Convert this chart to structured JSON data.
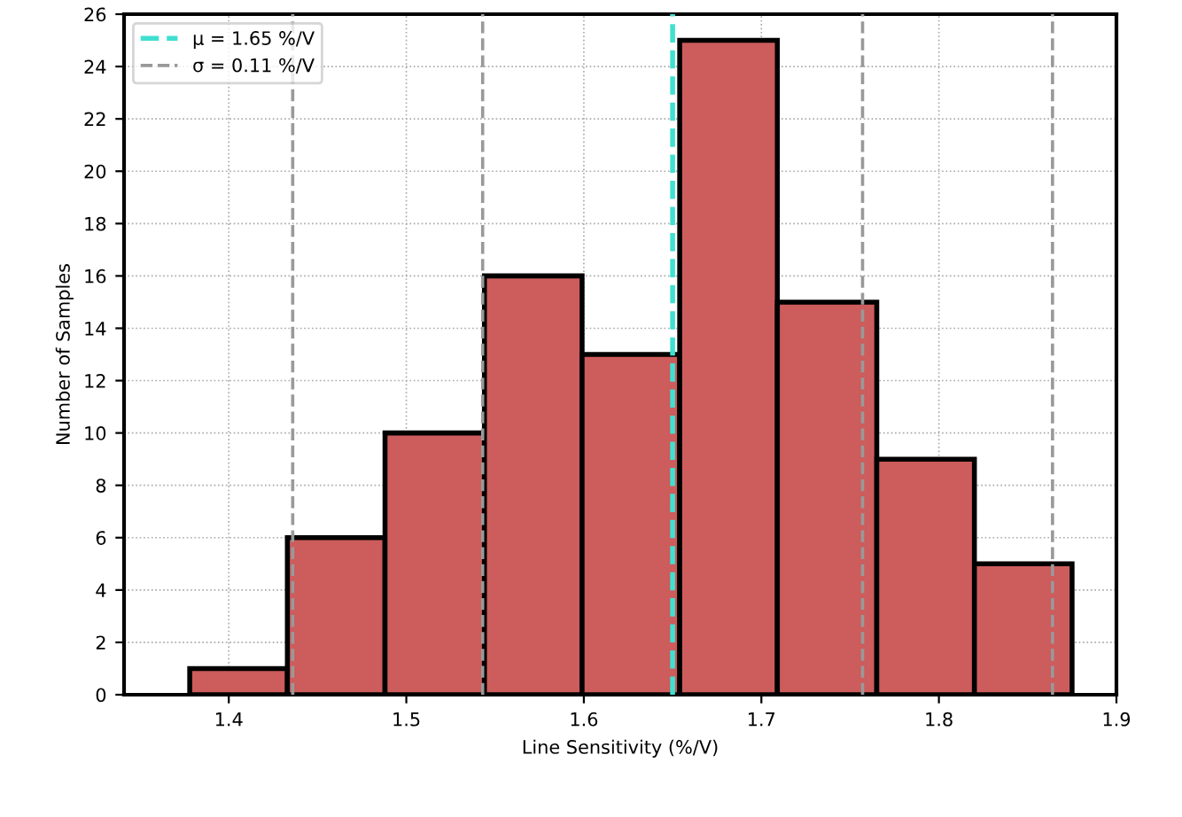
{
  "chart_data": {
    "type": "histogram",
    "xlabel": "Line Sensitivity (%/V)",
    "ylabel": "Number of Samples",
    "bins": [
      1.378,
      1.433,
      1.488,
      1.544,
      1.599,
      1.654,
      1.709,
      1.765,
      1.82,
      1.875
    ],
    "values": [
      1,
      6,
      10,
      16,
      13,
      25,
      15,
      9,
      5
    ],
    "color": "#cd5c5c",
    "xlim": [
      1.341,
      1.9
    ],
    "xticks": [
      1.4,
      1.5,
      1.6,
      1.7,
      1.8,
      1.9
    ],
    "ylim": [
      0,
      26
    ],
    "yticks": [
      0,
      2,
      4,
      6,
      8,
      10,
      12,
      14,
      16,
      18,
      20,
      22,
      24,
      26
    ],
    "grid": true,
    "annotations": [
      "μ = 1.65 %/V",
      "σ = 0.11 %/V"
    ],
    "ref_lines": [
      {
        "axis": "x",
        "value": 1.65,
        "label": null,
        "color": "#40e0d0",
        "line_style": "dashed"
      },
      {
        "axis": "x",
        "value": 1.543,
        "label": null,
        "color": "#999999",
        "line_style": "dashed"
      },
      {
        "axis": "x",
        "value": 1.757,
        "label": null,
        "color": "#999999",
        "line_style": "dashed"
      },
      {
        "axis": "x",
        "value": 1.436,
        "label": null,
        "color": "#999999",
        "line_style": "dashed"
      },
      {
        "axis": "x",
        "value": 1.864,
        "label": null,
        "color": "#999999",
        "line_style": "dashed"
      }
    ]
  }
}
